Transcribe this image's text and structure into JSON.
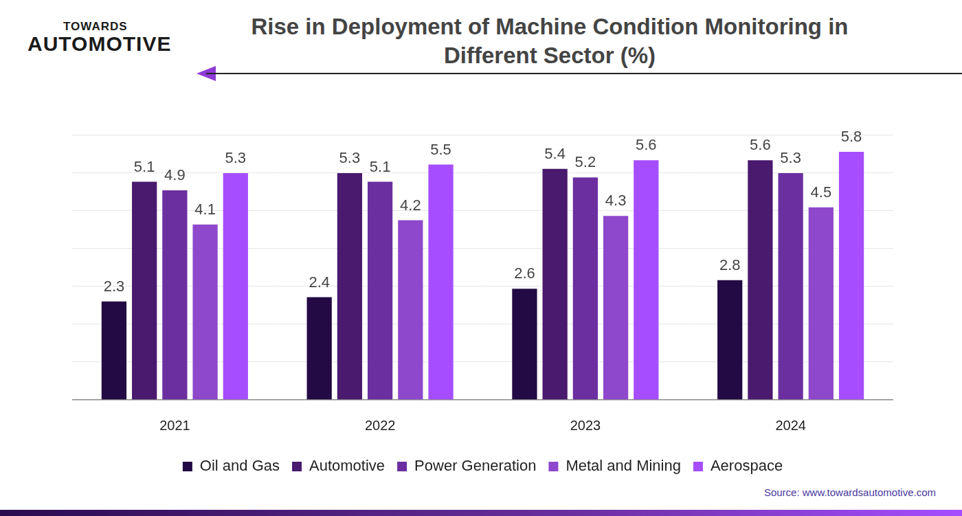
{
  "logo": [
    "TOWARDS",
    "AUTOMOTIVE"
  ],
  "source": "Source: www.towardsautomotive.com",
  "chart_data": {
    "type": "bar",
    "title": "Rise in Deployment of Machine Condition Monitoring in Different Sector (%)",
    "categories": [
      "2021",
      "2022",
      "2023",
      "2024"
    ],
    "series": [
      {
        "name": "Oil and Gas",
        "color": "#230a45",
        "values": [
          2.3,
          2.4,
          2.6,
          2.8
        ]
      },
      {
        "name": "Automotive",
        "color": "#4a1a6e",
        "values": [
          5.1,
          5.3,
          5.4,
          5.6
        ]
      },
      {
        "name": "Power Generation",
        "color": "#6b2fa0",
        "values": [
          4.9,
          5.1,
          5.2,
          5.3
        ]
      },
      {
        "name": "Metal and Mining",
        "color": "#8e48cc",
        "values": [
          4.1,
          4.2,
          4.3,
          4.5
        ]
      },
      {
        "name": "Aerospace",
        "color": "#a64dff",
        "values": [
          5.3,
          5.5,
          5.6,
          5.8
        ]
      }
    ],
    "ylim": [
      0,
      6.2
    ],
    "yticks": [
      0,
      0.89,
      1.77,
      2.66,
      3.54,
      4.43,
      5.31,
      6.2
    ],
    "grid": true,
    "legend": "bottom",
    "data_labels": true,
    "tick_labels": "x"
  }
}
